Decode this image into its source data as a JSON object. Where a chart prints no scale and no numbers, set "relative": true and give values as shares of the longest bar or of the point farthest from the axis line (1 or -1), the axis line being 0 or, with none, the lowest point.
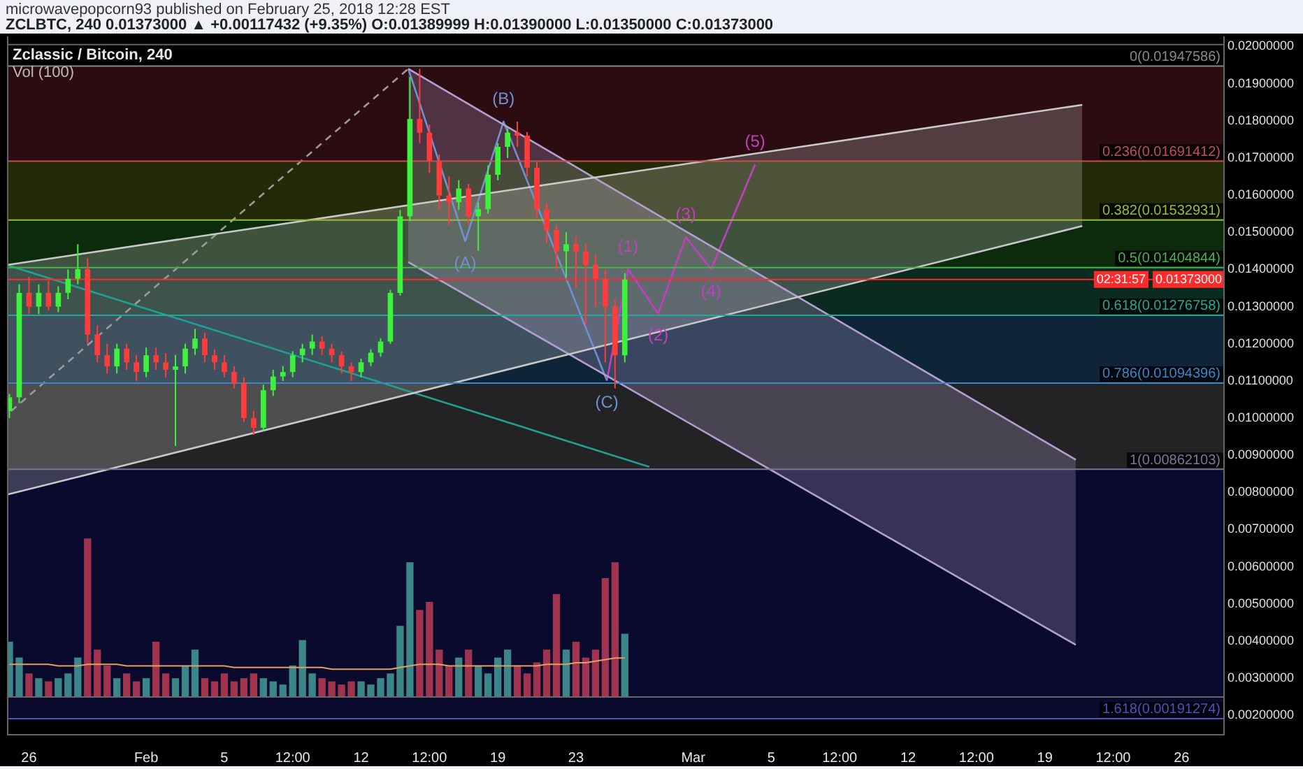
{
  "chart_data": [
    {
      "type": "candlestick",
      "title": "Zclassic / Bitcoin, 240",
      "subtitle": "ZCLBTC, 240 0.01373000 ▲ +0.00117432 (+9.35%) O:0.01389999 H:0.01390000 L:0.01350000 C:0.01373000",
      "annotations": [
        "microwavepopcorn93 published on February 25, 2018 12:28 EST",
        "02:31:57",
        {
          "text": "(A)",
          "x": "2018-02-17T08:00",
          "y": 0.01476
        },
        {
          "text": "(B)",
          "x": "2018-02-19T07:00",
          "y": 0.01798
        },
        {
          "text": "(C)",
          "x": "2018-02-24T14:00",
          "y": 0.01101
        },
        {
          "text": "(1)",
          "x": "2018-02-25T16:00",
          "y": 0.01401
        },
        {
          "text": "(2)",
          "x": "2018-02-27T05:00",
          "y": 0.01281
        },
        {
          "text": "(3)",
          "x": "2018-02-28T15:00",
          "y": 0.01487
        },
        {
          "text": "(4)",
          "x": "2018-03-01T22:00",
          "y": 0.01401
        },
        {
          "text": "(5)",
          "x": "2018-03-04T04:00",
          "y": 0.01682
        }
      ],
      "x": [
        "2018-01-25T00:00",
        "2018-01-25T12:00",
        "2018-01-26T00:00",
        "2018-01-26T12:00",
        "2018-01-27T00:00",
        "2018-01-27T12:00",
        "2018-01-28T00:00",
        "2018-01-28T12:00",
        "2018-01-29T00:00",
        "2018-01-29T12:00",
        "2018-01-30T00:00",
        "2018-01-30T12:00",
        "2018-01-31T00:00",
        "2018-01-31T12:00",
        "2018-02-01T00:00",
        "2018-02-01T12:00",
        "2018-02-02T00:00",
        "2018-02-02T12:00",
        "2018-02-03T00:00",
        "2018-02-03T12:00",
        "2018-02-04T00:00",
        "2018-02-04T12:00",
        "2018-02-05T00:00",
        "2018-02-05T12:00",
        "2018-02-06T00:00",
        "2018-02-06T12:00",
        "2018-02-07T00:00",
        "2018-02-07T12:00",
        "2018-02-08T00:00",
        "2018-02-08T12:00",
        "2018-02-09T00:00",
        "2018-02-09T12:00",
        "2018-02-10T00:00",
        "2018-02-10T12:00",
        "2018-02-11T00:00",
        "2018-02-11T12:00",
        "2018-02-12T00:00",
        "2018-02-12T12:00",
        "2018-02-13T00:00",
        "2018-02-13T12:00",
        "2018-02-14T00:00",
        "2018-02-14T12:00",
        "2018-02-15T00:00",
        "2018-02-15T12:00",
        "2018-02-16T00:00",
        "2018-02-16T12:00",
        "2018-02-17T00:00",
        "2018-02-17T12:00",
        "2018-02-18T00:00",
        "2018-02-18T12:00",
        "2018-02-19T00:00",
        "2018-02-19T12:00",
        "2018-02-20T00:00",
        "2018-02-20T12:00",
        "2018-02-21T00:00",
        "2018-02-21T12:00",
        "2018-02-22T00:00",
        "2018-02-22T12:00",
        "2018-02-23T00:00",
        "2018-02-23T12:00",
        "2018-02-24T00:00",
        "2018-02-24T12:00",
        "2018-02-25T00:00",
        "2018-02-25T12:00"
      ],
      "ohlc": [
        [
          0.01019,
          0.01065,
          0.01,
          0.01056
        ],
        [
          0.01056,
          0.0136,
          0.0104,
          0.01337
        ],
        [
          0.01337,
          0.0138,
          0.0128,
          0.013
        ],
        [
          0.013,
          0.0136,
          0.0128,
          0.01337
        ],
        [
          0.01337,
          0.0137,
          0.0129,
          0.013
        ],
        [
          0.013,
          0.01355,
          0.01285,
          0.01337
        ],
        [
          0.01337,
          0.014,
          0.0132,
          0.01375
        ],
        [
          0.01375,
          0.01468,
          0.0136,
          0.01401
        ],
        [
          0.01401,
          0.0143,
          0.012,
          0.01225
        ],
        [
          0.01225,
          0.0125,
          0.0115,
          0.01169
        ],
        [
          0.01169,
          0.012,
          0.0112,
          0.01139
        ],
        [
          0.01139,
          0.012,
          0.0112,
          0.01187
        ],
        [
          0.01187,
          0.012,
          0.0113,
          0.0115
        ],
        [
          0.0115,
          0.0117,
          0.011,
          0.01124
        ],
        [
          0.01124,
          0.0119,
          0.0111,
          0.01169
        ],
        [
          0.01169,
          0.0119,
          0.0113,
          0.0115
        ],
        [
          0.0115,
          0.01175,
          0.0111,
          0.0113
        ],
        [
          0.0113,
          0.0117,
          0.00925,
          0.01139
        ],
        [
          0.01139,
          0.012,
          0.0112,
          0.01187
        ],
        [
          0.01187,
          0.0124,
          0.0117,
          0.01214
        ],
        [
          0.01214,
          0.0123,
          0.0115,
          0.01169
        ],
        [
          0.01169,
          0.01185,
          0.0113,
          0.0115
        ],
        [
          0.0115,
          0.0117,
          0.0111,
          0.01124
        ],
        [
          0.01124,
          0.0114,
          0.0108,
          0.01094
        ],
        [
          0.01094,
          0.0111,
          0.0099,
          0.01
        ],
        [
          0.01,
          0.0102,
          0.00955,
          0.00974
        ],
        [
          0.00974,
          0.0109,
          0.00965,
          0.01075
        ],
        [
          0.01075,
          0.0113,
          0.0106,
          0.01112
        ],
        [
          0.01112,
          0.0114,
          0.011,
          0.01124
        ],
        [
          0.01124,
          0.0118,
          0.0111,
          0.01169
        ],
        [
          0.01169,
          0.012,
          0.0115,
          0.01187
        ],
        [
          0.01187,
          0.01225,
          0.0117,
          0.01206
        ],
        [
          0.01206,
          0.0122,
          0.0117,
          0.01187
        ],
        [
          0.01187,
          0.012,
          0.0115,
          0.01169
        ],
        [
          0.01169,
          0.0118,
          0.0112,
          0.01139
        ],
        [
          0.01139,
          0.0115,
          0.011,
          0.01124
        ],
        [
          0.01124,
          0.0116,
          0.0111,
          0.0115
        ],
        [
          0.0115,
          0.01185,
          0.0114,
          0.01176
        ],
        [
          0.01176,
          0.01215,
          0.01165,
          0.01206
        ],
        [
          0.01206,
          0.01345,
          0.012,
          0.01337
        ],
        [
          0.01337,
          0.0156,
          0.0133,
          0.01543
        ],
        [
          0.01543,
          0.01918,
          0.0153,
          0.01805
        ],
        [
          0.01805,
          0.0194,
          0.0174,
          0.01768
        ],
        [
          0.01768,
          0.0179,
          0.0166,
          0.01693
        ],
        [
          0.01693,
          0.0171,
          0.0156,
          0.01599
        ],
        [
          0.01599,
          0.0165,
          0.0152,
          0.01581
        ],
        [
          0.01581,
          0.0164,
          0.0156,
          0.01618
        ],
        [
          0.01618,
          0.0163,
          0.0152,
          0.01543
        ],
        [
          0.01543,
          0.0158,
          0.0145,
          0.01562
        ],
        [
          0.01562,
          0.0168,
          0.0155,
          0.01655
        ],
        [
          0.01655,
          0.0174,
          0.0164,
          0.0173
        ],
        [
          0.0173,
          0.0178,
          0.017,
          0.01768
        ],
        [
          0.01768,
          0.01798,
          0.0173,
          0.0176
        ],
        [
          0.0176,
          0.0177,
          0.0165,
          0.01674
        ],
        [
          0.01674,
          0.0169,
          0.0154,
          0.01562
        ],
        [
          0.01562,
          0.0158,
          0.0147,
          0.01506
        ],
        [
          0.01506,
          0.0152,
          0.014,
          0.01449
        ],
        [
          0.01449,
          0.015,
          0.0138,
          0.01468
        ],
        [
          0.01468,
          0.0149,
          0.0135,
          0.01449
        ],
        [
          0.01449,
          0.0147,
          0.0125,
          0.01412
        ],
        [
          0.01412,
          0.0144,
          0.013,
          0.01375
        ],
        [
          0.01375,
          0.014,
          0.0115,
          0.013
        ],
        [
          0.013,
          0.0132,
          0.0108,
          0.01169
        ],
        [
          0.01169,
          0.0139,
          0.0115,
          0.01373
        ]
      ],
      "series": [
        {
          "type": "line",
          "color": "#c8c8c8",
          "x": [
            "2018-01-24T21:00",
            "2018-03-20T22:00"
          ],
          "values": [
            0.01412,
            0.01843
          ],
          "lower": [
            0.00794,
            0.01517
          ],
          "upper": [
            0.01412,
            0.01843
          ]
        },
        {
          "type": "line",
          "color": "#c8c8c8",
          "x": [
            "2018-01-24T21:00",
            "2018-03-20T22:00"
          ],
          "values": [
            0.00794,
            0.01517
          ]
        },
        {
          "type": "line",
          "color": "#b4a0d0",
          "x": [
            "2018-02-14T10:00",
            "2018-03-20T14:00"
          ],
          "values": [
            0.0194,
            0.00888
          ],
          "lower": [
            0.0142,
            0.0039
          ],
          "upper": [
            0.0194,
            0.00888
          ]
        },
        {
          "type": "line",
          "color": "#b4a0d0",
          "x": [
            "2018-02-14T10:00",
            "2018-03-20T14:00"
          ],
          "values": [
            0.0142,
            0.0039
          ]
        },
        {
          "type": "line",
          "color": "#9a9a9a",
          "line_style": "dashed",
          "x": [
            "2018-01-25T02:00",
            "2018-02-14T10:00"
          ],
          "values": [
            0.01019,
            0.0194
          ]
        },
        {
          "type": "line",
          "color": "#20a090",
          "x": [
            "2018-01-24T21:00",
            "2018-02-26T18:00"
          ],
          "values": [
            0.01412,
            0.00869
          ]
        },
        {
          "type": "line",
          "color": "#7090d0",
          "x": [
            "2018-02-14T10:00",
            "2018-02-17T08:00",
            "2018-02-19T07:00",
            "2018-02-24T14:00"
          ],
          "values": [
            0.0194,
            0.01476,
            0.01798,
            0.01101
          ]
        },
        {
          "type": "line",
          "color": "#c040c0",
          "x": [
            "2018-02-24T14:00",
            "2018-02-25T16:00",
            "2018-02-27T05:00",
            "2018-02-28T15:00",
            "2018-03-01T22:00",
            "2018-03-04T04:00"
          ],
          "values": [
            0.01101,
            0.01401,
            0.01281,
            0.01487,
            0.01401,
            0.01682
          ]
        }
      ],
      "bands": [
        {
          "axis": "y",
          "from": 0.01691412,
          "to": 0.01947586,
          "color": "#2b0c10"
        },
        {
          "axis": "y",
          "from": 0.01532931,
          "to": 0.01691412,
          "color": "#232a08"
        },
        {
          "axis": "y",
          "from": 0.01404844,
          "to": 0.01532931,
          "color": "#0c2a0c"
        },
        {
          "axis": "y",
          "from": 0.01276758,
          "to": 0.01404844,
          "color": "#0b2a20"
        },
        {
          "axis": "y",
          "from": 0.01094396,
          "to": 0.01276758,
          "color": "#0e2538"
        },
        {
          "axis": "y",
          "from": 0.00862103,
          "to": 0.01094396,
          "color": "#232326"
        },
        {
          "axis": "y",
          "from": 0.00191274,
          "to": 0.00862103,
          "color": "#0a0a2e"
        }
      ],
      "ref_lines": [
        {
          "axis": "y",
          "value": 0.01947586,
          "label": "0(0.01947586)",
          "color": "#8a8a8a"
        },
        {
          "axis": "y",
          "value": 0.01691412,
          "label": "0.236(0.01691412)",
          "color": "#c0504d"
        },
        {
          "axis": "y",
          "value": 0.01532931,
          "label": "0.382(0.01532931)",
          "color": "#9bbb30"
        },
        {
          "axis": "y",
          "value": 0.01404844,
          "label": "0.5(0.01404844)",
          "color": "#4caf50"
        },
        {
          "axis": "y",
          "value": 0.01276758,
          "label": "0.618(0.01276758)",
          "color": "#26a69a"
        },
        {
          "axis": "y",
          "value": 0.01094396,
          "label": "0.786(0.01094396)",
          "color": "#3d85c6"
        },
        {
          "axis": "y",
          "value": 0.00862103,
          "label": "1(0.00862103)",
          "color": "#777799"
        },
        {
          "axis": "y",
          "value": 0.00191274,
          "label": "1.618(0.00191274)",
          "color": "#5050c0"
        },
        {
          "axis": "y",
          "value": 0.01373,
          "label": "0.01373000",
          "color": "#ff2a2a"
        }
      ],
      "xlim": [
        "2018-01-24T21:00",
        "2018-03-28T05:00"
      ],
      "xticks": [
        {
          "value": "2018-01-26",
          "label": "26"
        },
        {
          "value": "2018-02-01",
          "label": "Feb"
        },
        {
          "value": "2018-02-05",
          "label": "5"
        },
        {
          "value": "2018-02-08T12:00",
          "label": "12:00"
        },
        {
          "value": "2018-02-12",
          "label": "12"
        },
        {
          "value": "2018-02-15T12:00",
          "label": "12:00"
        },
        {
          "value": "2018-02-19",
          "label": "19"
        },
        {
          "value": "2018-02-23",
          "label": "23"
        },
        {
          "value": "2018-03-01",
          "label": "Mar"
        },
        {
          "value": "2018-03-05",
          "label": "5"
        },
        {
          "value": "2018-03-08T12:00",
          "label": "12:00"
        },
        {
          "value": "2018-03-12",
          "label": "12"
        },
        {
          "value": "2018-03-15T12:00",
          "label": "12:00"
        },
        {
          "value": "2018-03-19",
          "label": "19"
        },
        {
          "value": "2018-03-22T12:00",
          "label": "12:00"
        },
        {
          "value": "2018-03-26",
          "label": "26"
        }
      ],
      "ylim": [
        0.00146,
        0.02007
      ],
      "yticks": [
        {
          "value": 0.002,
          "label": "0.00200000"
        },
        {
          "value": 0.003,
          "label": "0.00300000"
        },
        {
          "value": 0.004,
          "label": "0.00400000"
        },
        {
          "value": 0.005,
          "label": "0.00500000"
        },
        {
          "value": 0.006,
          "label": "0.00600000"
        },
        {
          "value": 0.007,
          "label": "0.00700000"
        },
        {
          "value": 0.008,
          "label": "0.00800000"
        },
        {
          "value": 0.009,
          "label": "0.00900000"
        },
        {
          "value": 0.01,
          "label": "0.01000000"
        },
        {
          "value": 0.011,
          "label": "0.01100000"
        },
        {
          "value": 0.012,
          "label": "0.01200000"
        },
        {
          "value": 0.013,
          "label": "0.01300000"
        },
        {
          "value": 0.014,
          "label": "0.01400000"
        },
        {
          "value": 0.015,
          "label": "0.01500000"
        },
        {
          "value": 0.016,
          "label": "0.01600000"
        },
        {
          "value": 0.017,
          "label": "0.01700000"
        },
        {
          "value": 0.018,
          "label": "0.01800000"
        },
        {
          "value": 0.019,
          "label": "0.01900000"
        },
        {
          "value": 0.02,
          "label": "0.02000000"
        }
      ]
    },
    {
      "type": "bar",
      "relative": true,
      "title": "Vol (100)",
      "xlim": [
        "2018-01-24T21:00",
        "2018-03-28T05:00"
      ],
      "x": [
        "2018-01-25T00:00",
        "2018-01-25T12:00",
        "2018-01-26T00:00",
        "2018-01-26T12:00",
        "2018-01-27T00:00",
        "2018-01-27T12:00",
        "2018-01-28T00:00",
        "2018-01-28T12:00",
        "2018-01-29T00:00",
        "2018-01-29T12:00",
        "2018-01-30T00:00",
        "2018-01-30T12:00",
        "2018-01-31T00:00",
        "2018-01-31T12:00",
        "2018-02-01T00:00",
        "2018-02-01T12:00",
        "2018-02-02T00:00",
        "2018-02-02T12:00",
        "2018-02-03T00:00",
        "2018-02-03T12:00",
        "2018-02-04T00:00",
        "2018-02-04T12:00",
        "2018-02-05T00:00",
        "2018-02-05T12:00",
        "2018-02-06T00:00",
        "2018-02-06T12:00",
        "2018-02-07T00:00",
        "2018-02-07T12:00",
        "2018-02-08T00:00",
        "2018-02-08T12:00",
        "2018-02-09T00:00",
        "2018-02-09T12:00",
        "2018-02-10T00:00",
        "2018-02-10T12:00",
        "2018-02-11T00:00",
        "2018-02-11T12:00",
        "2018-02-12T00:00",
        "2018-02-12T12:00",
        "2018-02-13T00:00",
        "2018-02-13T12:00",
        "2018-02-14T00:00",
        "2018-02-14T12:00",
        "2018-02-15T00:00",
        "2018-02-15T12:00",
        "2018-02-16T00:00",
        "2018-02-16T12:00",
        "2018-02-17T00:00",
        "2018-02-17T12:00",
        "2018-02-18T00:00",
        "2018-02-18T12:00",
        "2018-02-19T00:00",
        "2018-02-19T12:00",
        "2018-02-20T00:00",
        "2018-02-20T12:00",
        "2018-02-21T00:00",
        "2018-02-21T12:00",
        "2018-02-22T00:00",
        "2018-02-22T12:00",
        "2018-02-23T00:00",
        "2018-02-23T12:00",
        "2018-02-24T00:00",
        "2018-02-24T12:00",
        "2018-02-25T00:00",
        "2018-02-25T12:00"
      ],
      "series": [
        {
          "type": "bar",
          "values": [
            0.35,
            0.25,
            0.15,
            0.12,
            0.1,
            0.12,
            0.15,
            0.25,
            1,
            0.3,
            0.2,
            0.12,
            0.15,
            0.1,
            0.12,
            0.35,
            0.15,
            0.12,
            0.2,
            0.3,
            0.12,
            0.1,
            0.15,
            0.1,
            0.12,
            0.15,
            0.12,
            0.1,
            0.08,
            0.2,
            0.36,
            0.15,
            0.12,
            0.1,
            0.08,
            0.1,
            0.1,
            0.08,
            0.12,
            0.15,
            0.45,
            0.85,
            0.55,
            0.6,
            0.3,
            0.2,
            0.25,
            0.3,
            0.2,
            0.15,
            0.25,
            0.3,
            0.2,
            0.15,
            0.22,
            0.3,
            0.65,
            0.3,
            0.35,
            0.25,
            0.3,
            0.75,
            0.85,
            0.4
          ],
          "colors": [
            "#3b8686",
            "#3b8686",
            "#a0344f",
            "#3b8686",
            "#a0344f",
            "#3b8686",
            "#3b8686",
            "#3b8686",
            "#a0344f",
            "#a0344f",
            "#a0344f",
            "#3b8686",
            "#a0344f",
            "#a0344f",
            "#3b8686",
            "#a0344f",
            "#a0344f",
            "#3b8686",
            "#3b8686",
            "#3b8686",
            "#a0344f",
            "#a0344f",
            "#a0344f",
            "#a0344f",
            "#a0344f",
            "#a0344f",
            "#3b8686",
            "#3b8686",
            "#3b8686",
            "#3b8686",
            "#3b8686",
            "#3b8686",
            "#a0344f",
            "#a0344f",
            "#a0344f",
            "#a0344f",
            "#3b8686",
            "#3b8686",
            "#3b8686",
            "#3b8686",
            "#3b8686",
            "#3b8686",
            "#a0344f",
            "#a0344f",
            "#a0344f",
            "#a0344f",
            "#3b8686",
            "#a0344f",
            "#3b8686",
            "#3b8686",
            "#3b8686",
            "#3b8686",
            "#a0344f",
            "#a0344f",
            "#a0344f",
            "#a0344f",
            "#a0344f",
            "#3b8686",
            "#a0344f",
            "#a0344f",
            "#a0344f",
            "#a0344f",
            "#a0344f",
            "#3b8686"
          ]
        },
        {
          "type": "line",
          "color": "#e0a060",
          "values": [
            0.21,
            0.21,
            0.21,
            0.21,
            0.21,
            0.2,
            0.2,
            0.2,
            0.21,
            0.21,
            0.21,
            0.21,
            0.2,
            0.2,
            0.2,
            0.2,
            0.2,
            0.2,
            0.2,
            0.2,
            0.2,
            0.2,
            0.2,
            0.19,
            0.19,
            0.19,
            0.19,
            0.19,
            0.19,
            0.19,
            0.19,
            0.19,
            0.19,
            0.18,
            0.18,
            0.18,
            0.18,
            0.18,
            0.18,
            0.18,
            0.19,
            0.2,
            0.21,
            0.21,
            0.21,
            0.2,
            0.2,
            0.2,
            0.2,
            0.2,
            0.2,
            0.2,
            0.2,
            0.2,
            0.2,
            0.21,
            0.21,
            0.21,
            0.22,
            0.22,
            0.23,
            0.24,
            0.25,
            0.25
          ]
        }
      ]
    }
  ]
}
